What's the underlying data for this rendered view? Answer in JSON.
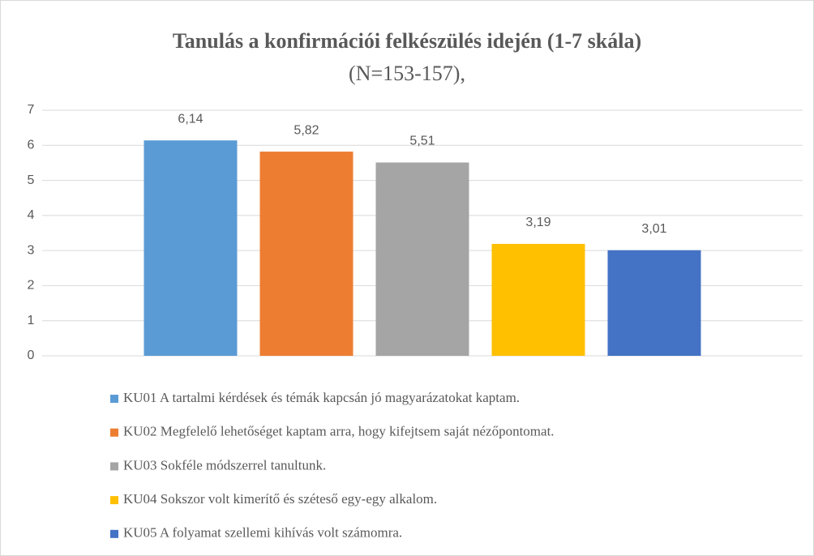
{
  "chart_data": {
    "type": "bar",
    "title": "Tanulás a konfirmációi felkészülés idején (1-7 skála)",
    "subtitle": "(N=153-157),",
    "series": [
      {
        "name": "KU01 A tartalmi kérdések és témák kapcsán jó magyarázatokat kaptam.",
        "color": "#5b9bd5",
        "values": [
          6.14
        ],
        "value_labels": [
          "6,14"
        ]
      },
      {
        "name": "KU02 Megfelelő lehetőséget kaptam arra, hogy kifejtsem saját nézőpontomat.",
        "color": "#ed7d31",
        "values": [
          5.82
        ],
        "value_labels": [
          "5,82"
        ]
      },
      {
        "name": "KU03 Sokféle módszerrel tanultunk.",
        "color": "#a5a5a5",
        "values": [
          5.51
        ],
        "value_labels": [
          "5,51"
        ]
      },
      {
        "name": "KU04 Sokszor volt kimerítő és széteső egy-egy alkalom.",
        "color": "#ffc000",
        "values": [
          3.19
        ],
        "value_labels": [
          "3,19"
        ]
      },
      {
        "name": "KU05 A folyamat szellemi kihívás volt számomra.",
        "color": "#4472c4",
        "values": [
          3.01
        ],
        "value_labels": [
          "3,01"
        ]
      }
    ],
    "ylim": [
      0,
      7
    ],
    "yticks": [
      0,
      1,
      2,
      3,
      4,
      5,
      6,
      7
    ],
    "grid": true,
    "legend": "bottom"
  }
}
